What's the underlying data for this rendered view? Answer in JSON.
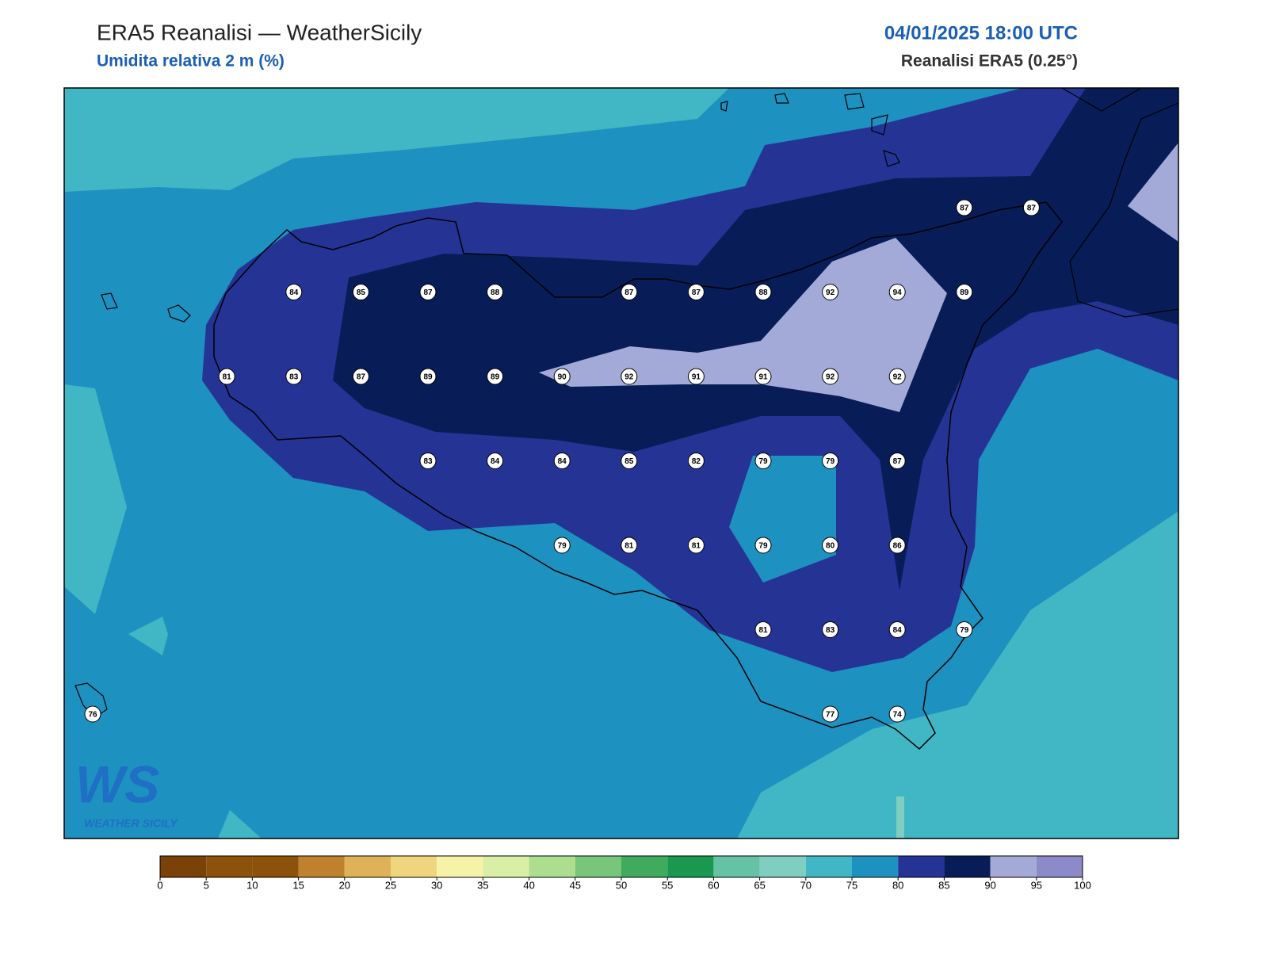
{
  "header": {
    "title": "ERA5 Reanalisi — WeatherSicily",
    "subtitle": "Umidita relativa 2 m (%)",
    "datetime": "04/01/2025 18:00 UTC",
    "source": "Reanalisi ERA5 (0.25°)"
  },
  "station_grid": [
    [
      null,
      null,
      null,
      null,
      null,
      null,
      null,
      null,
      null,
      null,
      null,
      null,
      null,
      87,
      87
    ],
    [
      null,
      null,
      null,
      84,
      85,
      87,
      88,
      null,
      87,
      87,
      88,
      92,
      94,
      89,
      null
    ],
    [
      null,
      null,
      81,
      83,
      87,
      89,
      89,
      90,
      92,
      91,
      91,
      92,
      92,
      null,
      null
    ],
    [
      null,
      null,
      null,
      null,
      null,
      83,
      84,
      84,
      85,
      82,
      79,
      79,
      87,
      null,
      null
    ],
    [
      null,
      null,
      null,
      null,
      null,
      null,
      null,
      79,
      81,
      81,
      79,
      80,
      86,
      null,
      null
    ],
    [
      null,
      null,
      null,
      null,
      null,
      null,
      null,
      null,
      null,
      null,
      81,
      83,
      84,
      79,
      null
    ],
    [
      76,
      null,
      null,
      null,
      null,
      null,
      null,
      null,
      null,
      null,
      null,
      77,
      74,
      null,
      null
    ]
  ],
  "colorbar": {
    "ticks": [
      0,
      5,
      10,
      15,
      20,
      25,
      30,
      35,
      40,
      45,
      50,
      55,
      60,
      65,
      70,
      75,
      80,
      85,
      90,
      95,
      100
    ],
    "colors": [
      "#7a4108",
      "#8c510a",
      "#8c510a",
      "#bf812d",
      "#dfb25a",
      "#f0d57f",
      "#f6f3a8",
      "#d9efa5",
      "#addd8e",
      "#78c679",
      "#41ab5d",
      "#1a9850",
      "#66c2a4",
      "#80cdc1",
      "#41b6c4",
      "#1d91c0",
      "#253494",
      "#081d58",
      "#a4aad8",
      "#8c8ac8"
    ]
  },
  "logo": {
    "letters": "WS",
    "text": "WEATHER SICILY"
  }
}
